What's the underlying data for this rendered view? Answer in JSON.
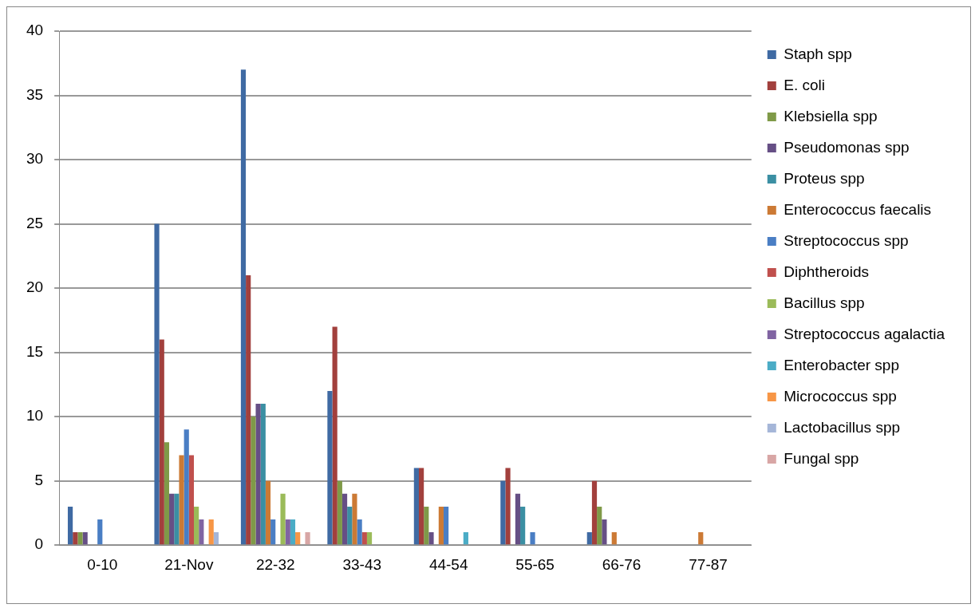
{
  "chart_data": {
    "type": "bar",
    "categories": [
      "0-10",
      "21-Nov",
      "22-32",
      "33-43",
      "44-54",
      "55-65",
      "66-76",
      "77-87"
    ],
    "ylim": [
      0,
      40
    ],
    "yticks": [
      0,
      5,
      10,
      15,
      20,
      25,
      30,
      35,
      40
    ],
    "grid": "y",
    "legend": "right",
    "series": [
      {
        "name": "Staph spp",
        "color": "#3f6aa3",
        "values": [
          3,
          25,
          37,
          12,
          6,
          5,
          1,
          0
        ]
      },
      {
        "name": "E. coli",
        "color": "#a2403d",
        "values": [
          1,
          16,
          21,
          17,
          6,
          6,
          5,
          0
        ]
      },
      {
        "name": "Klebsiella spp",
        "color": "#7f9a48",
        "values": [
          1,
          8,
          10,
          5,
          3,
          0,
          3,
          0
        ]
      },
      {
        "name": "Pseudomonas spp",
        "color": "#664f85",
        "values": [
          1,
          4,
          11,
          4,
          1,
          4,
          2,
          0
        ]
      },
      {
        "name": "Proteus spp",
        "color": "#3b8fa3",
        "values": [
          0,
          4,
          11,
          3,
          0,
          3,
          0,
          0
        ]
      },
      {
        "name": "Enterococcus faecalis",
        "color": "#cc7a35",
        "values": [
          0,
          7,
          5,
          4,
          3,
          0,
          1,
          1
        ]
      },
      {
        "name": "Streptococcus spp",
        "color": "#4a7ec4",
        "values": [
          2,
          9,
          2,
          2,
          3,
          1,
          0,
          0
        ]
      },
      {
        "name": "Diphtheroids",
        "color": "#c0504d",
        "values": [
          0,
          7,
          0,
          1,
          0,
          0,
          0,
          0
        ]
      },
      {
        "name": "Bacillus spp",
        "color": "#9bbb59",
        "values": [
          0,
          3,
          4,
          1,
          0,
          0,
          0,
          0
        ]
      },
      {
        "name": "Streptococcus agalactia",
        "color": "#8064a2",
        "values": [
          0,
          2,
          2,
          0,
          0,
          0,
          0,
          0
        ]
      },
      {
        "name": "Enterobacter spp",
        "color": "#4bacc6",
        "values": [
          0,
          0,
          2,
          0,
          1,
          0,
          0,
          0
        ]
      },
      {
        "name": "Micrococcus spp",
        "color": "#f79646",
        "values": [
          0,
          2,
          1,
          0,
          0,
          0,
          0,
          0
        ]
      },
      {
        "name": "Lactobacillus spp",
        "color": "#a5b6d8",
        "values": [
          0,
          1,
          0,
          0,
          0,
          0,
          0,
          0
        ]
      },
      {
        "name": "Fungal spp",
        "color": "#d8a6a5",
        "values": [
          0,
          0,
          1,
          0,
          0,
          0,
          0,
          0
        ]
      }
    ]
  }
}
